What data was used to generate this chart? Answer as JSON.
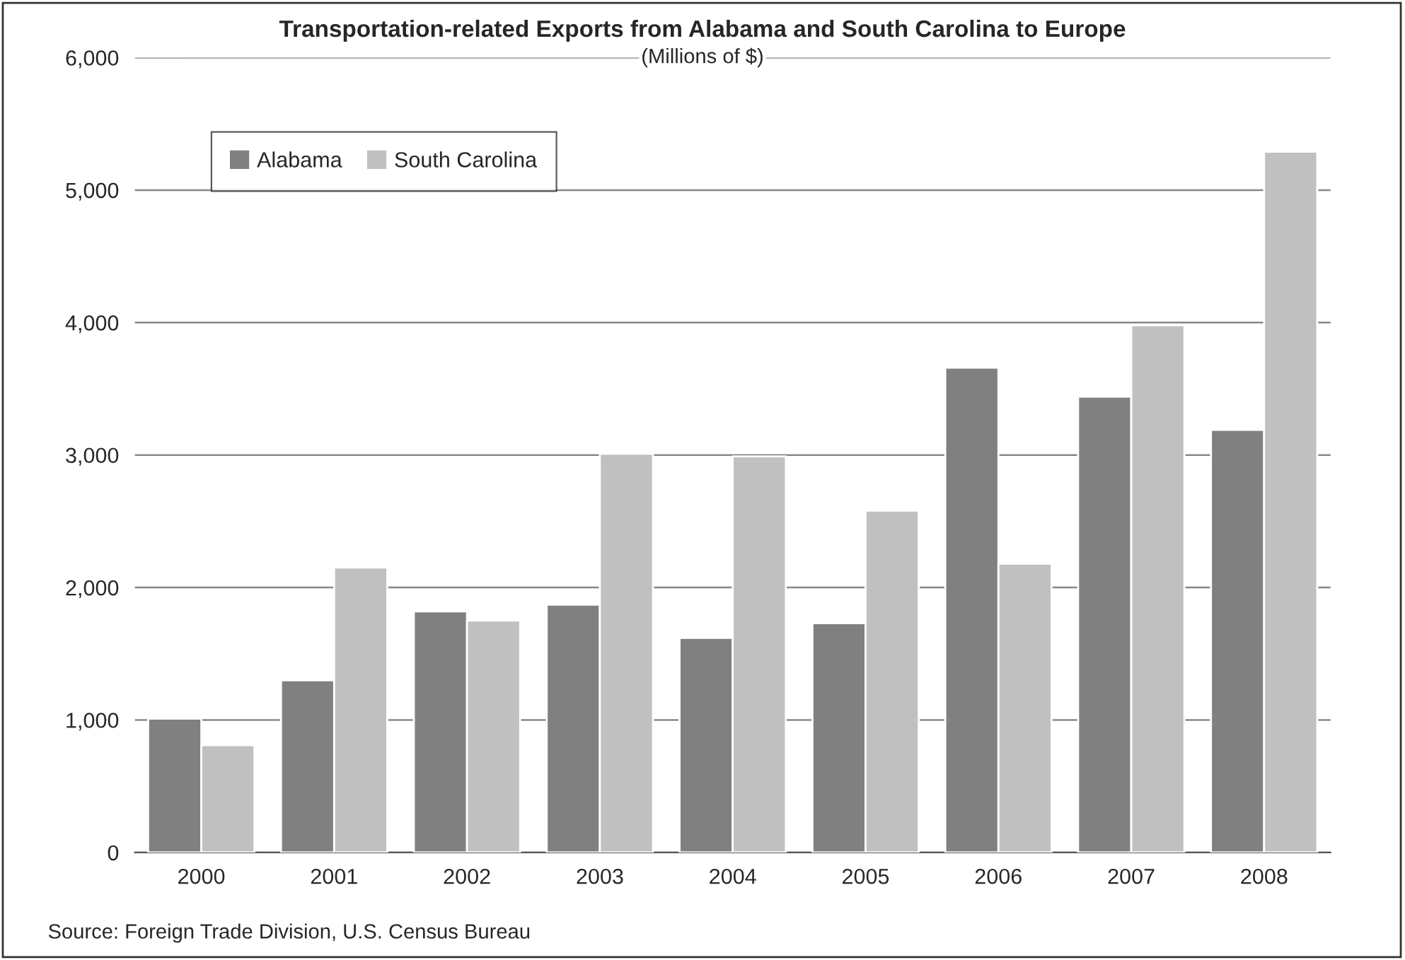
{
  "chart_data": {
    "type": "bar",
    "title": "Transportation-related Exports from Alabama and South Carolina to Europe",
    "subtitle": "(Millions of $)",
    "categories": [
      "2000",
      "2001",
      "2002",
      "2003",
      "2004",
      "2005",
      "2006",
      "2007",
      "2008"
    ],
    "series": [
      {
        "name": "Alabama",
        "color": "#808080",
        "values": [
          1010,
          1300,
          1820,
          1870,
          1620,
          1730,
          3660,
          3440,
          3190
        ]
      },
      {
        "name": "South Carolina",
        "color": "#c0c0c0",
        "values": [
          810,
          2150,
          1750,
          3010,
          2990,
          2580,
          2180,
          3980,
          5290
        ]
      }
    ],
    "ylim": [
      0,
      6000
    ],
    "yticks": [
      {
        "value": 0,
        "label": "0"
      },
      {
        "value": 1000,
        "label": "1,000"
      },
      {
        "value": 2000,
        "label": "2,000"
      },
      {
        "value": 3000,
        "label": "3,000"
      },
      {
        "value": 4000,
        "label": "4,000"
      },
      {
        "value": 5000,
        "label": "5,000"
      },
      {
        "value": 6000,
        "label": "6,000"
      }
    ],
    "grid": "y",
    "legend": "top left",
    "annotations": [
      "Source: Foreign Trade Division, U.S. Census Bureau"
    ]
  }
}
